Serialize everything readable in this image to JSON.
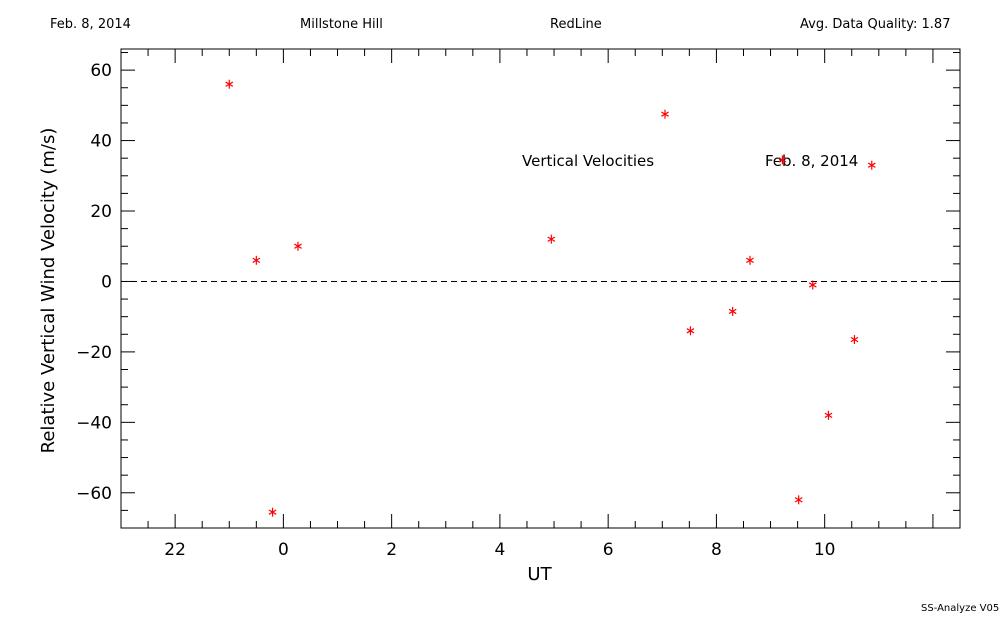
{
  "header": {
    "date": "Feb. 8, 2014",
    "station": "Millstone Hill",
    "line": "RedLine",
    "quality": "Avg. Data Quality: 1.87"
  },
  "footer": "SS-Analyze V05",
  "chart_data": {
    "type": "scatter",
    "title": "",
    "xlabel": "UT",
    "ylabel": "Relative Vertical Wind Velocity (m/s)",
    "xlim": [
      21,
      36.5
    ],
    "ylim": [
      -70,
      66
    ],
    "x_tick_values": [
      22,
      24,
      26,
      28,
      30,
      32,
      34
    ],
    "x_tick_labels": [
      "22",
      "0",
      "2",
      "4",
      "6",
      "8",
      "10"
    ],
    "y_ticks": [
      -60,
      -40,
      -20,
      0,
      20,
      40,
      60
    ],
    "y_tick_labels": [
      "−60",
      "−40",
      "−20",
      "0",
      "20",
      "40",
      "60"
    ],
    "zero_line": "dashed",
    "marker": "asterisk",
    "marker_color": "#ff0000",
    "annotations": [
      "Vertical Velocities",
      "Feb. 8, 2014"
    ],
    "series": [
      {
        "points": [
          {
            "x": 23.0,
            "y": 56
          },
          {
            "x": 23.5,
            "y": 6
          },
          {
            "x": 23.8,
            "y": -65.5
          },
          {
            "x": 24.27,
            "y": 10
          },
          {
            "x": 28.95,
            "y": 12
          },
          {
            "x": 31.05,
            "y": 47.5
          },
          {
            "x": 31.52,
            "y": -14
          },
          {
            "x": 32.3,
            "y": -8.5
          },
          {
            "x": 32.62,
            "y": 6
          },
          {
            "x": 33.22,
            "y": 34.5
          },
          {
            "x": 33.52,
            "y": -62
          },
          {
            "x": 33.78,
            "y": -1
          },
          {
            "x": 34.07,
            "y": -38
          },
          {
            "x": 34.55,
            "y": -16.5
          },
          {
            "x": 34.87,
            "y": 33
          }
        ]
      }
    ]
  }
}
